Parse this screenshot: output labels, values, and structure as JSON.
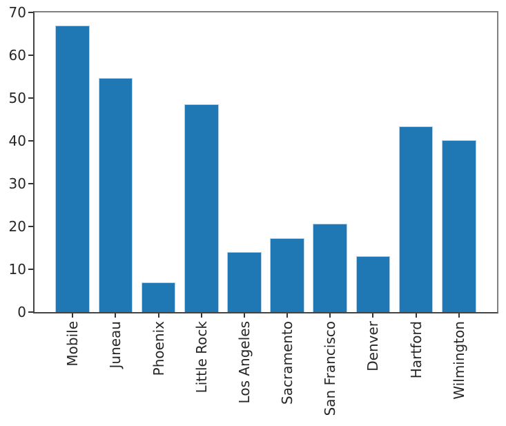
{
  "chart_data": {
    "type": "bar",
    "title": "",
    "xlabel": "",
    "ylabel": "",
    "categories": [
      "Mobile",
      "Juneau",
      "Phoenix",
      "Little Rock",
      "Los Angeles",
      "Sacramento",
      "San Francisco",
      "Denver",
      "Hartford",
      "Wilmington"
    ],
    "values": [
      67.0,
      54.7,
      7.0,
      48.5,
      14.0,
      17.2,
      20.7,
      13.0,
      43.4,
      40.2
    ],
    "ylim": [
      0,
      70
    ],
    "yticks": [
      0,
      10,
      20,
      30,
      40,
      50,
      60,
      70
    ],
    "x_tick_label_rotation_deg": 90,
    "grid": false,
    "legend": null,
    "bar_width_fraction": 0.8
  },
  "colors": {
    "bar_fill": "#1f77b4",
    "bar_edge": "#b3d1e8",
    "spine_left_bottom": "#444444",
    "spine_top_right": "#7f7f7f",
    "tick_mark": "#333333",
    "tick_label_text": "#262626",
    "background": "#ffffff"
  }
}
